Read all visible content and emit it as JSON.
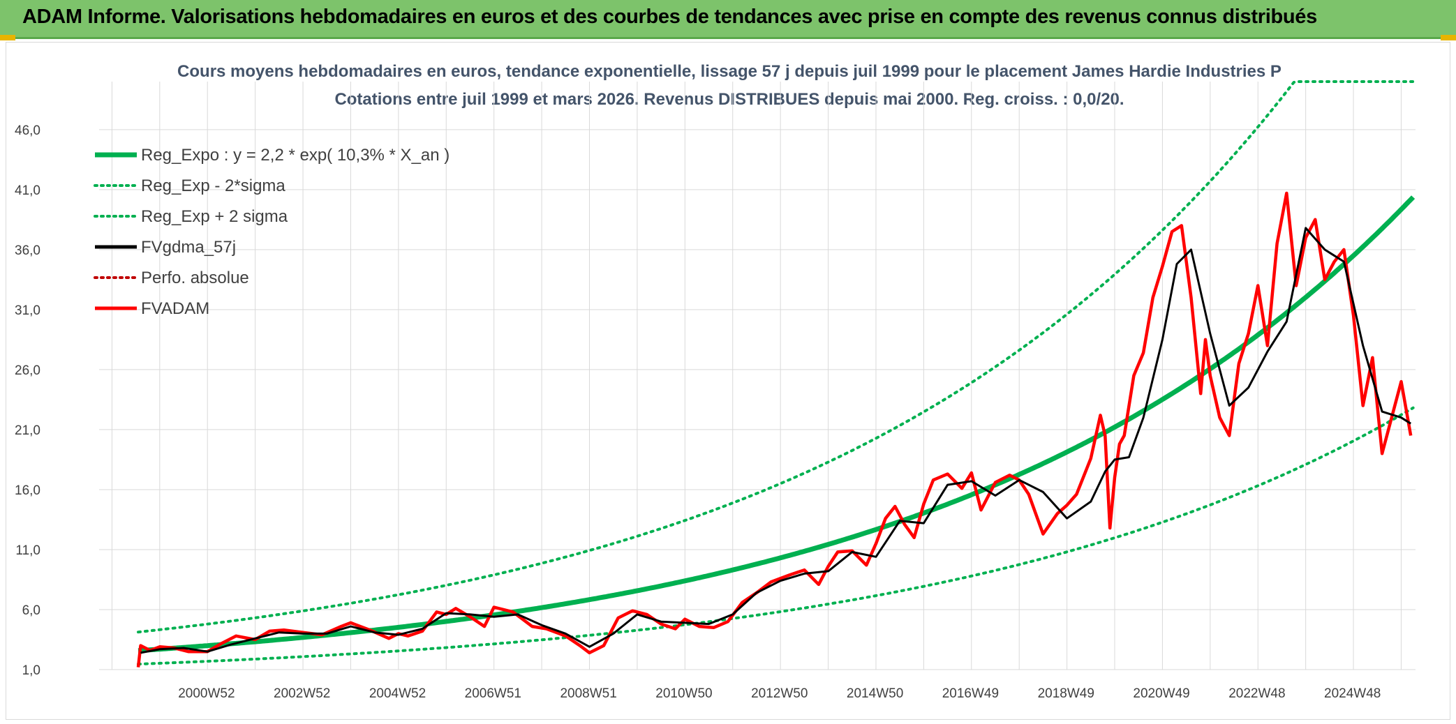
{
  "banner": {
    "title": "ADAM Informe. Valorisations hebdomadaires en euros et des courbes de tendances avec prise en compte des revenus connus distribués"
  },
  "colors": {
    "banner_bg": "#7dc36b",
    "reg_expo": "#00b050",
    "fvgdma": "#000000",
    "perfo": "#c00000",
    "fvadam": "#ff0000"
  },
  "chart_data": {
    "type": "line",
    "title": "Cours moyens hebdomadaires en euros, tendance exponentielle, lissage 57 j depuis juil 1999 pour le placement James Hardie Industries P",
    "subtitle": "Cotations entre juil 1999 et mars 2026. Revenus DISTRIBUES depuis mai 2000. Reg. croiss. : 0,0/20.",
    "y_ticks": [
      "1,0",
      "6,0",
      "11,0",
      "16,0",
      "21,0",
      "26,0",
      "31,0",
      "36,0",
      "41,0",
      "46,0"
    ],
    "ylim": [
      1,
      50
    ],
    "x_ticks": [
      "2000W52",
      "2002W52",
      "2004W52",
      "2006W51",
      "2008W51",
      "2010W50",
      "2012W50",
      "2014W50",
      "2016W49",
      "2018W49",
      "2020W49",
      "2022W48",
      "2024W48"
    ],
    "xlim": [
      1998.0,
      2026.3
    ],
    "grid": true,
    "legend_placement": "top-left",
    "legend": [
      {
        "label": "Reg_Expo : y = 2,2 * exp( 10,3% *  X_an )",
        "style": "solid-thick",
        "color": "#00b050"
      },
      {
        "label": "Reg_Exp - 2*sigma",
        "style": "dotted",
        "color": "#00b050"
      },
      {
        "label": "Reg_Exp + 2 sigma",
        "style": "dotted",
        "color": "#00b050"
      },
      {
        "label": "FVgdma_57j",
        "style": "solid",
        "color": "#000000"
      },
      {
        "label": "Perfo. absolue",
        "style": "dotted",
        "color": "#c00000"
      },
      {
        "label": "FVADAM",
        "style": "solid",
        "color": "#ff0000"
      }
    ],
    "regression": {
      "a": 2.2,
      "rate": 0.103,
      "x_start": 1999.55,
      "x_end": 2026.25,
      "lower_factor": 0.565,
      "upper_factor": 1.6,
      "cap": 50
    },
    "series": [
      {
        "name": "FVADAM",
        "x": [
          1999.55,
          1999.6,
          1999.8,
          2000.0,
          2000.3,
          2000.6,
          2001.0,
          2001.3,
          2001.6,
          2002.0,
          2002.3,
          2002.6,
          2003.0,
          2003.4,
          2003.8,
          2004.0,
          2004.4,
          2004.8,
          2005.0,
          2005.2,
          2005.5,
          2005.8,
          2006.0,
          2006.2,
          2006.5,
          2006.8,
          2007.0,
          2007.4,
          2007.8,
          2008.1,
          2008.5,
          2008.8,
          2009.0,
          2009.3,
          2009.6,
          2009.9,
          2010.2,
          2010.5,
          2010.8,
          2011.0,
          2011.3,
          2011.6,
          2011.9,
          2012.2,
          2012.5,
          2012.8,
          2013.0,
          2013.2,
          2013.5,
          2013.8,
          2014.0,
          2014.2,
          2014.5,
          2014.8,
          2015.0,
          2015.2,
          2015.4,
          2015.6,
          2015.8,
          2016.0,
          2016.2,
          2016.5,
          2016.8,
          2017.0,
          2017.2,
          2017.5,
          2017.8,
          2018.0,
          2018.2,
          2018.5,
          2018.8,
          2019.0,
          2019.2,
          2019.5,
          2019.7,
          2019.8,
          2019.9,
          2020.0,
          2020.1,
          2020.2,
          2020.4,
          2020.6,
          2020.8,
          2021.0,
          2021.2,
          2021.4,
          2021.6,
          2021.8,
          2021.9,
          2022.0,
          2022.2,
          2022.4,
          2022.6,
          2022.8,
          2023.0,
          2023.2,
          2023.4,
          2023.6,
          2023.8,
          2024.0,
          2024.2,
          2024.4,
          2024.6,
          2024.8,
          2025.0,
          2025.2,
          2025.4,
          2025.6,
          2025.8,
          2026.0,
          2026.2
        ],
        "values": [
          1.2,
          3.0,
          2.6,
          2.9,
          2.8,
          2.5,
          2.5,
          3.2,
          3.8,
          3.5,
          4.2,
          4.3,
          4.1,
          3.9,
          4.6,
          4.9,
          4.3,
          3.6,
          4.0,
          3.8,
          4.2,
          5.8,
          5.6,
          6.1,
          5.4,
          4.6,
          6.2,
          5.8,
          4.6,
          4.4,
          3.8,
          3.0,
          2.4,
          3.0,
          5.3,
          5.9,
          5.6,
          4.8,
          4.4,
          5.2,
          4.6,
          4.5,
          5.0,
          6.6,
          7.4,
          8.3,
          8.6,
          8.9,
          9.3,
          8.1,
          9.6,
          10.8,
          10.9,
          9.7,
          11.5,
          13.6,
          14.6,
          13.1,
          12.0,
          14.8,
          16.8,
          17.3,
          16.1,
          17.4,
          14.3,
          16.6,
          17.2,
          16.8,
          15.6,
          12.3,
          14.0,
          14.7,
          15.6,
          18.6,
          22.2,
          20.5,
          12.8,
          17.0,
          19.8,
          20.5,
          25.5,
          27.4,
          32.0,
          34.6,
          37.5,
          38.0,
          32.0,
          24.0,
          28.5,
          25.5,
          22.0,
          20.5,
          26.5,
          29.0,
          33.0,
          28.0,
          36.5,
          40.7,
          33.0,
          37.0,
          38.5,
          33.5,
          35.0,
          36.0,
          30.5,
          23.0,
          27.0,
          19.0,
          22.0,
          25.0,
          20.5
        ]
      },
      {
        "name": "FVgdma_57j",
        "x": [
          1999.6,
          2000.0,
          2000.5,
          2001.0,
          2001.5,
          2002.0,
          2002.5,
          2003.0,
          2003.5,
          2004.0,
          2004.5,
          2005.0,
          2005.5,
          2006.0,
          2006.5,
          2007.0,
          2007.5,
          2008.0,
          2008.5,
          2009.0,
          2009.5,
          2010.0,
          2010.5,
          2011.0,
          2011.5,
          2012.0,
          2012.5,
          2013.0,
          2013.5,
          2014.0,
          2014.5,
          2015.0,
          2015.5,
          2016.0,
          2016.5,
          2017.0,
          2017.5,
          2018.0,
          2018.5,
          2019.0,
          2019.5,
          2019.8,
          2020.0,
          2020.3,
          2020.6,
          2021.0,
          2021.3,
          2021.6,
          2022.0,
          2022.4,
          2022.8,
          2023.2,
          2023.6,
          2024.0,
          2024.4,
          2024.8,
          2025.2,
          2025.6,
          2026.0,
          2026.2
        ],
        "values": [
          2.4,
          2.7,
          2.8,
          2.5,
          3.1,
          3.6,
          4.1,
          4.0,
          4.0,
          4.6,
          4.1,
          3.9,
          4.4,
          5.7,
          5.6,
          5.4,
          5.6,
          4.7,
          4.0,
          2.9,
          4.0,
          5.6,
          5.0,
          4.9,
          4.8,
          5.6,
          7.4,
          8.4,
          9.0,
          9.2,
          10.8,
          10.4,
          13.4,
          13.2,
          16.4,
          16.7,
          15.5,
          16.8,
          15.8,
          13.6,
          15.0,
          17.5,
          18.5,
          18.7,
          22.0,
          28.5,
          34.8,
          36.0,
          29.0,
          23.0,
          24.5,
          27.5,
          30.0,
          37.8,
          36.0,
          35.0,
          28.0,
          22.5,
          22.0,
          21.5
        ]
      }
    ]
  }
}
